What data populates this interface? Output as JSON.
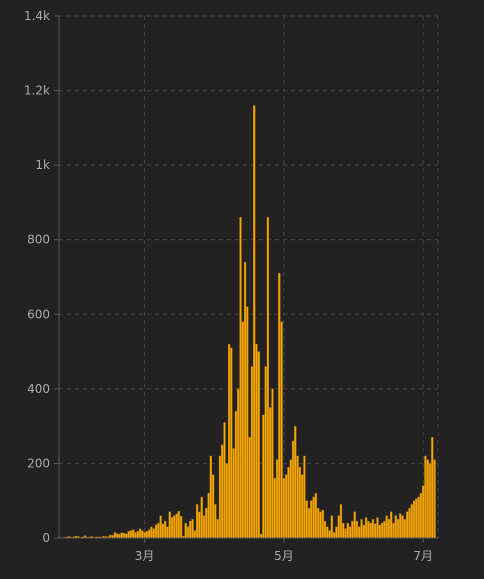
{
  "chart_data": {
    "type": "bar",
    "title": "",
    "xlabel": "",
    "ylabel": "",
    "ylim": [
      0,
      1400
    ],
    "y_ticks": [
      {
        "value": 0,
        "label": "0"
      },
      {
        "value": 200,
        "label": "200"
      },
      {
        "value": 400,
        "label": "400"
      },
      {
        "value": 600,
        "label": "600"
      },
      {
        "value": 800,
        "label": "800"
      },
      {
        "value": 1000,
        "label": "1k"
      },
      {
        "value": 1200,
        "label": "1.2k"
      },
      {
        "value": 1400,
        "label": "1.4k"
      }
    ],
    "x_ticks": [
      {
        "day": 37,
        "label": "3月"
      },
      {
        "day": 98,
        "label": "5月"
      },
      {
        "day": 159,
        "label": "7月"
      }
    ],
    "grid": true,
    "colors": {
      "background": "#222222",
      "bar": "#f5a800",
      "bar_edge": "#b87800",
      "grid": "#444444",
      "axis": "#555555",
      "text": "#aaaaaa"
    },
    "values": [
      0,
      1,
      2,
      3,
      4,
      2,
      3,
      5,
      4,
      2,
      3,
      6,
      2,
      3,
      4,
      2,
      3,
      3,
      2,
      5,
      4,
      3,
      8,
      7,
      15,
      12,
      10,
      14,
      13,
      11,
      18,
      20,
      22,
      15,
      18,
      25,
      20,
      15,
      18,
      22,
      30,
      25,
      35,
      40,
      60,
      38,
      45,
      30,
      70,
      55,
      60,
      65,
      72,
      58,
      5,
      40,
      30,
      45,
      50,
      20,
      90,
      70,
      110,
      60,
      80,
      120,
      220,
      170,
      90,
      50,
      220,
      250,
      310,
      200,
      520,
      510,
      240,
      340,
      400,
      860,
      580,
      740,
      620,
      270,
      460,
      1160,
      520,
      500,
      10,
      330,
      460,
      860,
      350,
      400,
      160,
      210,
      710,
      580,
      160,
      170,
      190,
      210,
      260,
      300,
      220,
      190,
      170,
      220,
      100,
      80,
      100,
      110,
      120,
      80,
      70,
      75,
      45,
      30,
      20,
      60,
      15,
      30,
      60,
      90,
      40,
      25,
      40,
      30,
      45,
      70,
      45,
      30,
      50,
      35,
      55,
      45,
      40,
      50,
      38,
      55,
      35,
      40,
      45,
      60,
      50,
      70,
      40,
      60,
      50,
      65,
      60,
      50,
      70,
      80,
      90,
      100,
      105,
      110,
      120,
      140,
      220,
      210,
      200,
      270,
      210
    ]
  }
}
